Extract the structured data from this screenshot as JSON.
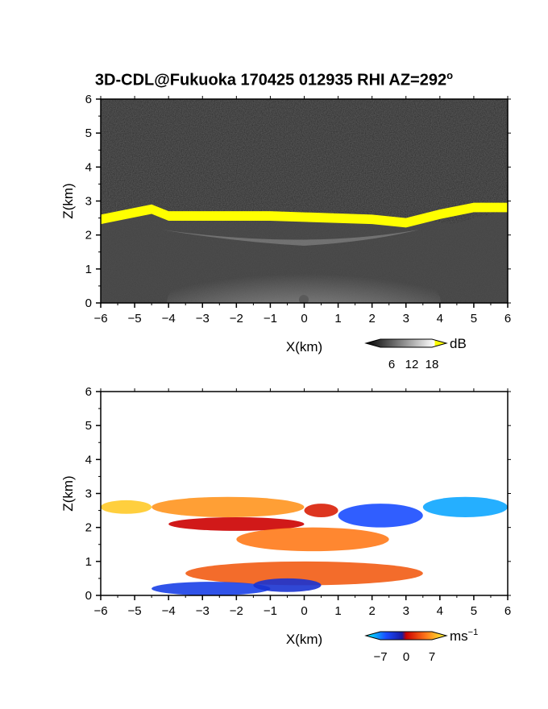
{
  "title": {
    "text": "3D-CDL@Fukuoka 170425 012935 RHI AZ=292",
    "degree": "o"
  },
  "chart_data": [
    {
      "type": "heatmap",
      "name": "backscatter",
      "xlabel": "X(km)",
      "ylabel": "Z(km)",
      "xlim": [
        -6,
        6
      ],
      "ylim": [
        0,
        6
      ],
      "xticks": [
        "−6",
        "−5",
        "−4",
        "−3",
        "−2",
        "−1",
        "0",
        "1",
        "2",
        "3",
        "4",
        "5",
        "6"
      ],
      "yticks": [
        "0",
        "1",
        "2",
        "3",
        "4",
        "5",
        "6"
      ],
      "colorbar": {
        "unit": "dB",
        "ticks": [
          "6",
          "12",
          "18"
        ],
        "range": [
          0,
          20
        ],
        "colormap": "grayscale, yellow above 18"
      },
      "cloud_layer_top_km": [
        {
          "x": -6.0,
          "z": 2.6
        },
        {
          "x": -4.5,
          "z": 2.9
        },
        {
          "x": -4.0,
          "z": 2.7
        },
        {
          "x": -1.0,
          "z": 2.7
        },
        {
          "x": 2.0,
          "z": 2.6
        },
        {
          "x": 3.0,
          "z": 2.5
        },
        {
          "x": 4.0,
          "z": 2.75
        },
        {
          "x": 5.0,
          "z": 2.95
        },
        {
          "x": 6.0,
          "z": 2.95
        }
      ],
      "colors": {
        "background": "#2b2b2b",
        "strong": "#ffff00"
      }
    },
    {
      "type": "heatmap",
      "name": "radial velocity",
      "xlabel": "X(km)",
      "ylabel": "Z(km)",
      "xlim": [
        -6,
        6
      ],
      "ylim": [
        0,
        6
      ],
      "xticks": [
        "−6",
        "−5",
        "−4",
        "−3",
        "−2",
        "−1",
        "0",
        "1",
        "2",
        "3",
        "4",
        "5",
        "6"
      ],
      "yticks": [
        "0",
        "1",
        "2",
        "3",
        "4",
        "5",
        "6"
      ],
      "colorbar": {
        "unit": "ms",
        "unit_exponent": "−1",
        "ticks": [
          "−7",
          "0",
          "7"
        ],
        "range": [
          -9,
          9
        ],
        "colormap": "cyan-blue-red-orange-yellow"
      },
      "regions_ms": [
        {
          "x": [
            -6.0,
            -4.5
          ],
          "z": [
            2.4,
            2.8
          ],
          "v": 7
        },
        {
          "x": [
            -4.5,
            0.0
          ],
          "z": [
            2.3,
            2.9
          ],
          "v": 5
        },
        {
          "x": [
            0.0,
            1.0
          ],
          "z": [
            2.3,
            2.7
          ],
          "v": 1
        },
        {
          "x": [
            1.0,
            3.5
          ],
          "z": [
            2.0,
            2.7
          ],
          "v": -5
        },
        {
          "x": [
            3.5,
            6.0
          ],
          "z": [
            2.3,
            2.9
          ],
          "v": -7
        },
        {
          "x": [
            -4.0,
            0.0
          ],
          "z": [
            1.9,
            2.3
          ],
          "v": 0
        },
        {
          "x": [
            -2.0,
            2.5
          ],
          "z": [
            1.3,
            2.0
          ],
          "v": 4
        },
        {
          "x": [
            -3.5,
            3.5
          ],
          "z": [
            0.3,
            1.0
          ],
          "v": 3
        },
        {
          "x": [
            -4.5,
            -1.0
          ],
          "z": [
            0.0,
            0.4
          ],
          "v": -4
        },
        {
          "x": [
            -1.5,
            0.5
          ],
          "z": [
            0.1,
            0.5
          ],
          "v": -3
        }
      ]
    }
  ]
}
